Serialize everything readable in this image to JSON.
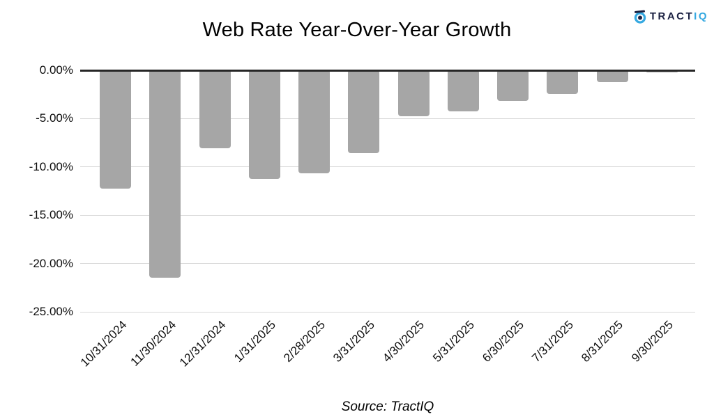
{
  "logo": {
    "brand_primary": "TRACT",
    "brand_accent": "IQ",
    "primary_color": "#1b2142",
    "accent_color": "#36a9e1"
  },
  "chart_data": {
    "type": "bar",
    "title": "Web Rate Year-Over-Year Growth",
    "categories": [
      "10/31/2024",
      "11/30/2024",
      "12/31/2024",
      "1/31/2025",
      "2/28/2025",
      "3/31/2025",
      "4/30/2025",
      "5/31/2025",
      "6/30/2025",
      "7/31/2025",
      "8/31/2025",
      "9/30/2025"
    ],
    "values": [
      -12.2,
      -21.4,
      -8.0,
      -11.2,
      -10.6,
      -8.5,
      -4.7,
      -4.2,
      -3.1,
      -2.4,
      -1.2,
      -0.2
    ],
    "value_unit": "%",
    "y_tick_labels": [
      "0.00%",
      "-5.00%",
      "-10.00%",
      "-15.00%",
      "-20.00%",
      "-25.00%"
    ],
    "ylim": [
      -25,
      0
    ],
    "xlabel": "",
    "ylabel": "",
    "grid": true,
    "legend": false,
    "bar_color": "#a6a6a6",
    "gridline_color": "#d9d9d9",
    "zero_line_color": "#262626",
    "label_color": "#0d0d0d"
  },
  "footer": {
    "source_label": "Source: TractIQ"
  }
}
